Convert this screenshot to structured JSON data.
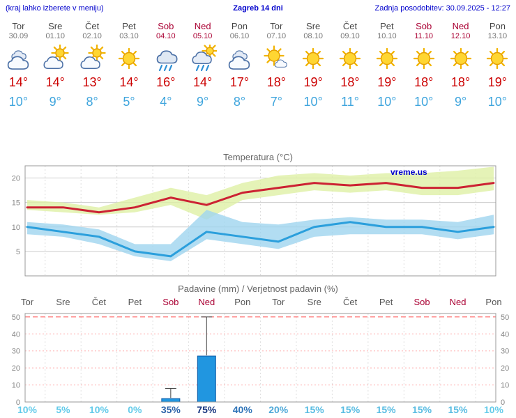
{
  "header": {
    "hint": "(kraj lahko izberete v meniju)",
    "title": "Zagreb 14 dni",
    "updated": "Zadnja posodobitev: 30.09.2025 - 12:27"
  },
  "watermark": "vreme.us",
  "colors": {
    "accent_blue": "#0000cc",
    "high_temp_red": "#cc0000",
    "low_temp_blue": "#3fa5dd",
    "weekend_red": "#aa0033",
    "bar_fill": "#2196e0"
  },
  "days": [
    {
      "name": "Tor",
      "date": "30.09",
      "weekend": false,
      "icon": "cloudy",
      "high": "14°",
      "low": "10°"
    },
    {
      "name": "Sre",
      "date": "01.10",
      "weekend": false,
      "icon": "partly-cloudy",
      "high": "14°",
      "low": "9°"
    },
    {
      "name": "Čet",
      "date": "02.10",
      "weekend": false,
      "icon": "partly-cloudy",
      "high": "13°",
      "low": "8°"
    },
    {
      "name": "Pet",
      "date": "03.10",
      "weekend": false,
      "icon": "sunny",
      "high": "14°",
      "low": "5°"
    },
    {
      "name": "Sob",
      "date": "04.10",
      "weekend": true,
      "icon": "rain",
      "high": "16°",
      "low": "4°"
    },
    {
      "name": "Ned",
      "date": "05.10",
      "weekend": true,
      "icon": "rain-sun",
      "high": "14°",
      "low": "9°"
    },
    {
      "name": "Pon",
      "date": "06.10",
      "weekend": false,
      "icon": "cloudy",
      "high": "17°",
      "low": "8°"
    },
    {
      "name": "Tor",
      "date": "07.10",
      "weekend": false,
      "icon": "mostly-sunny",
      "high": "18°",
      "low": "7°"
    },
    {
      "name": "Sre",
      "date": "08.10",
      "weekend": false,
      "icon": "sunny",
      "high": "19°",
      "low": "10°"
    },
    {
      "name": "Čet",
      "date": "09.10",
      "weekend": false,
      "icon": "sunny",
      "high": "18°",
      "low": "11°"
    },
    {
      "name": "Pet",
      "date": "10.10",
      "weekend": false,
      "icon": "sunny",
      "high": "19°",
      "low": "10°"
    },
    {
      "name": "Sob",
      "date": "11.10",
      "weekend": true,
      "icon": "sunny",
      "high": "18°",
      "low": "10°"
    },
    {
      "name": "Ned",
      "date": "12.10",
      "weekend": true,
      "icon": "sunny",
      "high": "18°",
      "low": "9°"
    },
    {
      "name": "Pon",
      "date": "13.10",
      "weekend": false,
      "icon": "sunny",
      "high": "19°",
      "low": "10°"
    }
  ],
  "chart_data": [
    {
      "type": "area",
      "title": "Temperatura (°C)",
      "x_labels": [
        "Tor",
        "Sre",
        "Čet",
        "Pet",
        "Sob",
        "Ned",
        "Pon",
        "Tor",
        "Sre",
        "Čet",
        "Pet",
        "Sob",
        "Ned",
        "Pon"
      ],
      "ylim": [
        0,
        22.5
      ],
      "yticks": [
        5,
        10,
        15,
        20
      ],
      "series": [
        {
          "name": "max-temp",
          "color": "#cc2233",
          "values": [
            14,
            14,
            13,
            14,
            16,
            14.5,
            17,
            18,
            19,
            18.5,
            19,
            18,
            18,
            19
          ]
        },
        {
          "name": "min-temp",
          "color": "#2b9fdc",
          "values": [
            10,
            9,
            8,
            5,
            4,
            9,
            8,
            7,
            10,
            11,
            10,
            10,
            9,
            10
          ]
        }
      ],
      "bands": [
        {
          "name": "max-temp-range",
          "color": "#dff0a5",
          "upper": [
            15.5,
            15,
            14,
            16,
            18,
            16.5,
            19,
            20.5,
            21,
            20.5,
            21,
            21,
            21.5,
            22.3
          ],
          "lower": [
            13.5,
            13,
            12.5,
            13,
            14.5,
            11.5,
            15.5,
            16.5,
            17.5,
            17,
            17.5,
            16.5,
            16.5,
            17.5
          ]
        },
        {
          "name": "min-temp-range",
          "color": "#9fd4ef",
          "upper": [
            11,
            10.5,
            9.5,
            6.5,
            6.5,
            13.5,
            11,
            10.5,
            11.5,
            12,
            11.5,
            11.5,
            11,
            12.5
          ],
          "lower": [
            8.5,
            8,
            6.5,
            4,
            3,
            7.5,
            6.5,
            5.5,
            8,
            8.5,
            8.5,
            8.5,
            7.5,
            8.5
          ]
        }
      ]
    },
    {
      "type": "bar",
      "title": "Padavine (mm) / Verjetnost padavin (%)",
      "categories": [
        "Tor",
        "Sre",
        "Čet",
        "Pet",
        "Sob",
        "Ned",
        "Pon",
        "Tor",
        "Sre",
        "Čet",
        "Pet",
        "Sob",
        "Ned",
        "Pon"
      ],
      "values": [
        0,
        0,
        0,
        0,
        2,
        27,
        0,
        0,
        0,
        0,
        0,
        0,
        0,
        0
      ],
      "whisker_max": [
        0,
        0,
        0,
        0,
        8,
        50,
        0,
        0,
        0,
        0,
        0,
        0,
        0,
        0
      ],
      "probabilities": [
        {
          "label": "10%",
          "color": "#63cbea"
        },
        {
          "label": "5%",
          "color": "#63cbea"
        },
        {
          "label": "10%",
          "color": "#63cbea"
        },
        {
          "label": "0%",
          "color": "#63cbea"
        },
        {
          "label": "35%",
          "color": "#2b62a8"
        },
        {
          "label": "75%",
          "color": "#16357f"
        },
        {
          "label": "40%",
          "color": "#2f74b8"
        },
        {
          "label": "20%",
          "color": "#4da8d8"
        },
        {
          "label": "15%",
          "color": "#58bce2"
        },
        {
          "label": "15%",
          "color": "#58bce2"
        },
        {
          "label": "15%",
          "color": "#58bce2"
        },
        {
          "label": "15%",
          "color": "#58bce2"
        },
        {
          "label": "15%",
          "color": "#58bce2"
        },
        {
          "label": "10%",
          "color": "#63cbea"
        }
      ],
      "ylim": [
        0,
        52
      ],
      "yticks": [
        0,
        10,
        20,
        30,
        40,
        50
      ]
    }
  ]
}
